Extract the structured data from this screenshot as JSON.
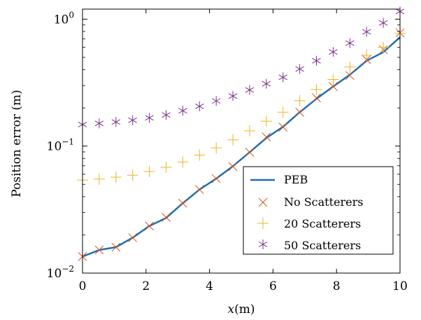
{
  "chart_data": {
    "type": "line",
    "xlabel": "x(m)",
    "ylabel": "Position error (m)",
    "xlim": [
      0,
      10
    ],
    "ylim": [
      0.01,
      1.2
    ],
    "yscale": "log",
    "grid": false,
    "legend_position": "bottom-right",
    "x_ticks": [
      0,
      2,
      4,
      6,
      8,
      10
    ],
    "x_tick_labels": [
      "0",
      "2",
      "4",
      "6",
      "8",
      "10"
    ],
    "y_ticks": [
      0.01,
      0.1,
      1
    ],
    "y_tick_labels": [
      [
        "10",
        "−2"
      ],
      [
        "10",
        "−1"
      ],
      [
        "10",
        "0"
      ]
    ],
    "x": [
      0,
      0.526,
      1.053,
      1.579,
      2.105,
      2.632,
      3.158,
      3.684,
      4.211,
      4.737,
      5.263,
      5.789,
      6.316,
      6.842,
      7.368,
      7.895,
      8.421,
      8.947,
      9.474,
      10
    ],
    "series": [
      {
        "name": "PEB",
        "style": "line",
        "color": "#1f6fb4",
        "values": [
          0.0135,
          0.0152,
          0.016,
          0.019,
          0.0235,
          0.0272,
          0.0355,
          0.0455,
          0.0555,
          0.0695,
          0.0895,
          0.116,
          0.142,
          0.185,
          0.236,
          0.295,
          0.365,
          0.47,
          0.55,
          0.72
        ]
      },
      {
        "name": "No Scatterers",
        "style": "marker-x",
        "color": "#d9541a",
        "values": [
          0.0135,
          0.0152,
          0.016,
          0.019,
          0.0235,
          0.0275,
          0.0355,
          0.0455,
          0.0555,
          0.069,
          0.0895,
          0.118,
          0.141,
          0.185,
          0.24,
          0.295,
          0.36,
          0.48,
          0.575,
          0.78
        ]
      },
      {
        "name": "20 Scatterers",
        "style": "marker-plus",
        "color": "#f0b323",
        "values": [
          0.054,
          0.055,
          0.057,
          0.059,
          0.063,
          0.068,
          0.075,
          0.085,
          0.097,
          0.112,
          0.132,
          0.157,
          0.185,
          0.228,
          0.28,
          0.335,
          0.42,
          0.52,
          0.6,
          0.77
        ]
      },
      {
        "name": "50 Scatterers",
        "style": "marker-asterisk",
        "color": "#7d2e8e",
        "values": [
          0.148,
          0.151,
          0.155,
          0.16,
          0.167,
          0.176,
          0.19,
          0.206,
          0.227,
          0.248,
          0.277,
          0.31,
          0.348,
          0.405,
          0.47,
          0.552,
          0.648,
          0.795,
          0.935,
          1.15
        ]
      }
    ]
  }
}
